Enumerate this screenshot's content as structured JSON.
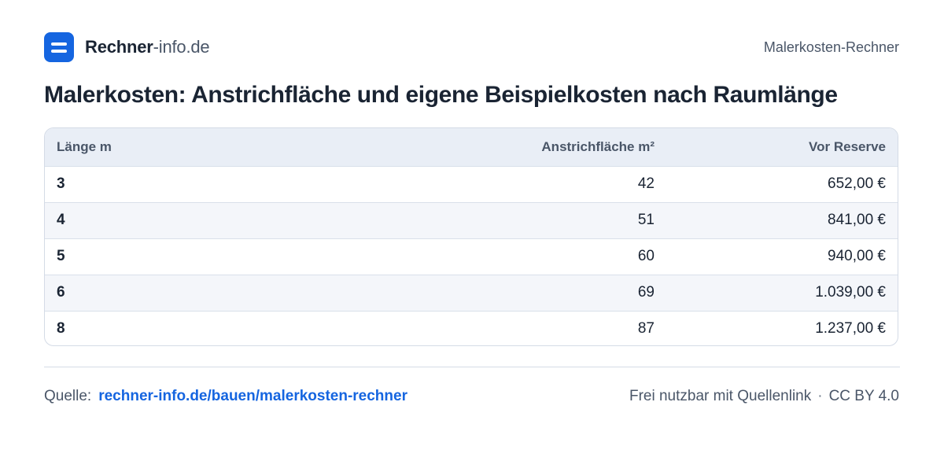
{
  "header": {
    "brand_strong": "Rechner",
    "brand_light": "-info.de",
    "tool_name": "Malerkosten-Rechner"
  },
  "title": "Malerkosten: Anstrichfläche und eigene Beispielkosten nach Raumlänge",
  "table": {
    "columns": [
      "Länge m",
      "Anstrichfläche m²",
      "Vor Reserve"
    ],
    "rows": [
      [
        "3",
        "42",
        "652,00 €"
      ],
      [
        "4",
        "51",
        "841,00 €"
      ],
      [
        "5",
        "60",
        "940,00 €"
      ],
      [
        "6",
        "69",
        "1.039,00 €"
      ],
      [
        "8",
        "87",
        "1.237,00 €"
      ]
    ]
  },
  "footer": {
    "source_label": "Quelle:",
    "source_link": "rechner-info.de/bauen/malerkosten-rechner",
    "license_text": "Frei nutzbar mit Quellenlink",
    "separator": "·",
    "license_name": "CC BY 4.0"
  },
  "colors": {
    "accent": "#1565e0",
    "text": "#1a2433",
    "muted": "#4a5668",
    "header_bg": "#e9eef6",
    "border": "#d4dbe6"
  }
}
